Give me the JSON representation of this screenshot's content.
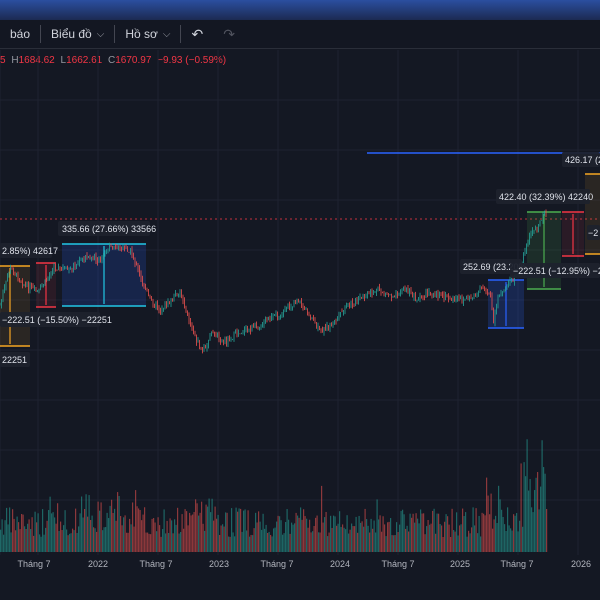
{
  "toolbar": {
    "alerts_label": "báo",
    "chart_label": "Biểu đồ",
    "profile_label": "Hồ sơ"
  },
  "ohlc": {
    "open_partial": "5",
    "h_label": "H",
    "h": "1684.62",
    "l_label": "L",
    "l": "1662.61",
    "c_label": "C",
    "c": "1670.97",
    "change": "−9.93 (−0.59%)"
  },
  "colors": {
    "background": "#141823",
    "up": "#26a69a",
    "down": "#ef5350",
    "horizontal_line": "#2962ff",
    "price_line": "#f23645",
    "range_orange": "#f5a623",
    "range_cyan": "#22c7e6",
    "range_blue": "#2962ff",
    "range_green": "#4caf50",
    "range_red": "#f23645"
  },
  "time_axis": [
    "Tháng 7",
    "2022",
    "Tháng 7",
    "2023",
    "Tháng 7",
    "2024",
    "Tháng 7",
    "2025",
    "Tháng 7",
    "2026"
  ],
  "annotations": [
    {
      "text": "2.85%) 42617"
    },
    {
      "text": "−222.51 (−15.50%) −22251"
    },
    {
      "text": "22251"
    },
    {
      "text": "335.66 (27.66%) 33566"
    },
    {
      "text": "252.69 (23.20%"
    },
    {
      "text": "422.40 (32.39%) 42240"
    },
    {
      "text": "−222.51 (−12.95%) −2"
    },
    {
      "text": "426.17 (2"
    },
    {
      "text": "−2"
    }
  ]
}
